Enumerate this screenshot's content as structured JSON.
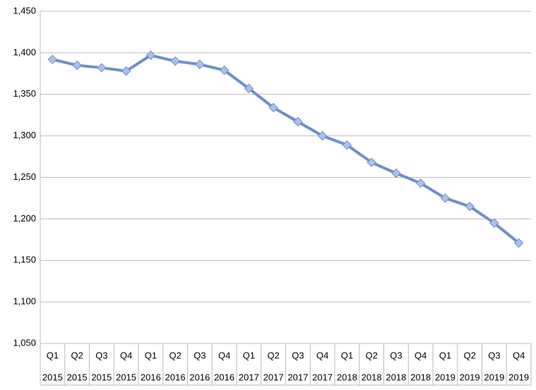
{
  "chart_data": {
    "type": "line",
    "categories": [
      [
        "Q1",
        "2015"
      ],
      [
        "Q2",
        "2015"
      ],
      [
        "Q3",
        "2015"
      ],
      [
        "Q4",
        "2015"
      ],
      [
        "Q1",
        "2016"
      ],
      [
        "Q2",
        "2016"
      ],
      [
        "Q3",
        "2016"
      ],
      [
        "Q4",
        "2016"
      ],
      [
        "Q1",
        "2017"
      ],
      [
        "Q2",
        "2017"
      ],
      [
        "Q3",
        "2017"
      ],
      [
        "Q4",
        "2017"
      ],
      [
        "Q1",
        "2018"
      ],
      [
        "Q2",
        "2018"
      ],
      [
        "Q3",
        "2018"
      ],
      [
        "Q4",
        "2018"
      ],
      [
        "Q1",
        "2019"
      ],
      [
        "Q2",
        "2019"
      ],
      [
        "Q3",
        "2019"
      ],
      [
        "Q4",
        "2019"
      ]
    ],
    "series": [
      {
        "color": "#6f8fc9",
        "marker_color": "#a9c1f0",
        "values": [
          1392,
          1385,
          1382,
          1378,
          1397,
          1390,
          1386,
          1379,
          1357,
          1334,
          1317,
          1300,
          1289,
          1268,
          1255,
          1243,
          1225,
          1215,
          1195,
          1171
        ]
      }
    ],
    "ylim": [
      1050,
      1450
    ],
    "yticks": [
      {
        "value": 1050,
        "label": "1,050"
      },
      {
        "value": 1100,
        "label": "1,100"
      },
      {
        "value": 1150,
        "label": "1,150"
      },
      {
        "value": 1200,
        "label": "1,200"
      },
      {
        "value": 1250,
        "label": "1,250"
      },
      {
        "value": 1300,
        "label": "1,300"
      },
      {
        "value": 1350,
        "label": "1,350"
      },
      {
        "value": 1400,
        "label": "1,400"
      },
      {
        "value": 1450,
        "label": "1,450"
      }
    ],
    "grid": true
  }
}
